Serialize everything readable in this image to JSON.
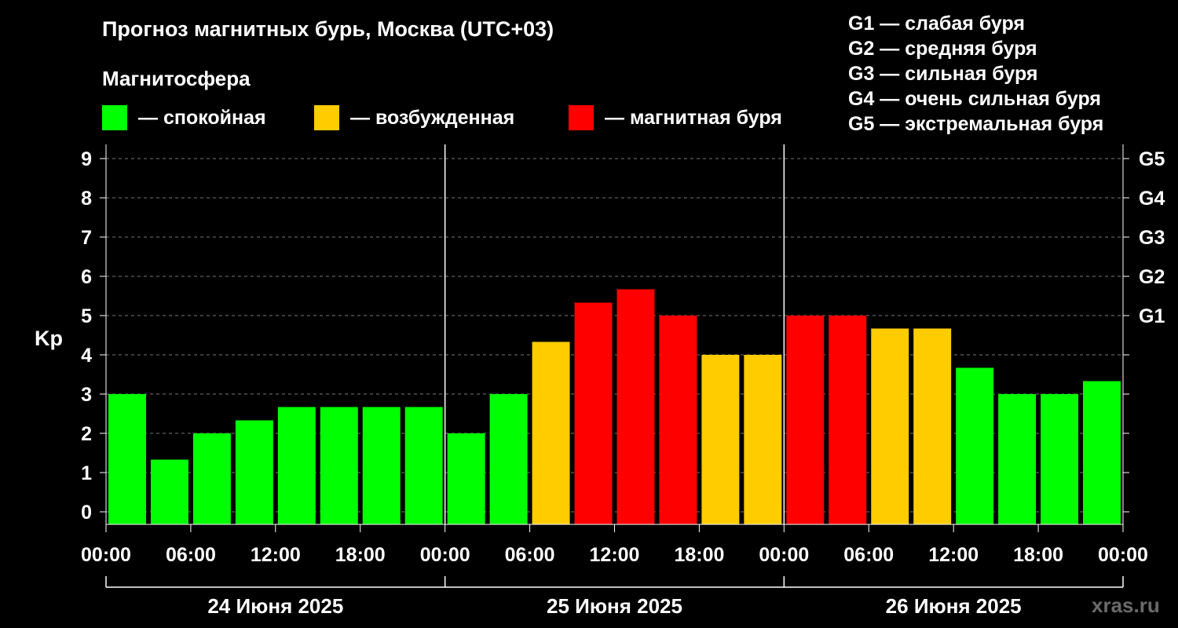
{
  "header": {
    "title": "Прогноз магнитных бурь, Москва (UTC+03)",
    "magnetosphere_label": "Магнитосфера"
  },
  "legend": [
    {
      "label": "— спокойная",
      "color": "#00ff00"
    },
    {
      "label": "— возбужденная",
      "color": "#ffcc00"
    },
    {
      "label": "— магнитная буря",
      "color": "#ff0000"
    }
  ],
  "g_legend": [
    "G1 — слабая буря",
    "G2 — средняя буря",
    "G3 — сильная буря",
    "G4 — очень сильная буря",
    "G5 — экстремальная буря"
  ],
  "watermark": "xras.ru",
  "chart_data": {
    "type": "bar",
    "title": "Прогноз магнитных бурь, Москва (UTC+03)",
    "ylabel": "Kp",
    "ylim": [
      0,
      9
    ],
    "yticks": [
      "0",
      "1",
      "2",
      "3",
      "4",
      "5",
      "6",
      "7",
      "8",
      "9"
    ],
    "right_ticks": [
      {
        "value": 5,
        "label": "G1"
      },
      {
        "value": 6,
        "label": "G2"
      },
      {
        "value": 7,
        "label": "G3"
      },
      {
        "value": 8,
        "label": "G4"
      },
      {
        "value": 9,
        "label": "G5"
      }
    ],
    "xtick_labels": [
      "00:00",
      "06:00",
      "12:00",
      "18:00",
      "00:00",
      "06:00",
      "12:00",
      "18:00",
      "00:00",
      "06:00",
      "12:00",
      "18:00",
      "00:00"
    ],
    "days": [
      "24 Июня 2025",
      "25 Июня 2025",
      "26 Июня 2025"
    ],
    "interval_hours": 3,
    "values": [
      3.0,
      1.33,
      2.0,
      2.33,
      2.67,
      2.67,
      2.67,
      2.67,
      2.0,
      3.0,
      4.33,
      5.33,
      5.67,
      5.0,
      4.0,
      4.0,
      5.0,
      5.0,
      4.67,
      4.67,
      3.67,
      3.0,
      3.0,
      3.33
    ],
    "levels": [
      "quiet",
      "quiet",
      "quiet",
      "quiet",
      "quiet",
      "quiet",
      "quiet",
      "quiet",
      "quiet",
      "quiet",
      "active",
      "storm",
      "storm",
      "storm",
      "active",
      "active",
      "storm",
      "storm",
      "active",
      "active",
      "quiet",
      "quiet",
      "quiet",
      "quiet"
    ],
    "level_colors": {
      "quiet": "#00ff00",
      "active": "#ffcc00",
      "storm": "#ff0000"
    },
    "grid": "dashed horizontal at integer Kp"
  }
}
